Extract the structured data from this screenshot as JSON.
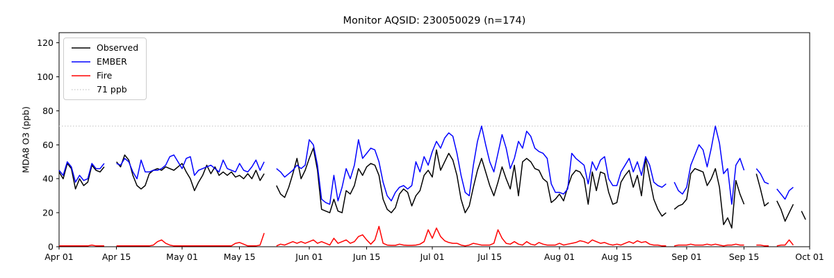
{
  "chart_data": {
    "type": "line",
    "title": "Monitor AQSID: 230050029 (n=174)",
    "ylabel": "MDA8 O3 (ppb)",
    "xlabel": "",
    "ylim": [
      0,
      126
    ],
    "yticks": [
      0,
      20,
      40,
      60,
      80,
      100,
      120
    ],
    "x_total_days": 183,
    "x_ticks": [
      {
        "day": 0,
        "label": "Apr 01"
      },
      {
        "day": 14,
        "label": "Apr 15"
      },
      {
        "day": 30,
        "label": "May 01"
      },
      {
        "day": 44,
        "label": "May 15"
      },
      {
        "day": 61,
        "label": "Jun 01"
      },
      {
        "day": 75,
        "label": "Jun 15"
      },
      {
        "day": 91,
        "label": "Jul 01"
      },
      {
        "day": 105,
        "label": "Jul 15"
      },
      {
        "day": 122,
        "label": "Aug 01"
      },
      {
        "day": 136,
        "label": "Aug 15"
      },
      {
        "day": 153,
        "label": "Sep 01"
      },
      {
        "day": 167,
        "label": "Sep 15"
      },
      {
        "day": 183,
        "label": "Oct 01"
      }
    ],
    "grid": false,
    "legend_position": "upper-left",
    "threshold": {
      "label": "71 ppb",
      "value": 71,
      "color": "#d0d0d0",
      "style": "dotted"
    },
    "series": [
      {
        "name": "Observed",
        "color": "#000000",
        "values": [
          44,
          40,
          49,
          46,
          34,
          40,
          36,
          38,
          48,
          45,
          44,
          47,
          null,
          null,
          50,
          47,
          54,
          51,
          42,
          36,
          34,
          36,
          43,
          45,
          46,
          45,
          47,
          46,
          45,
          47,
          49,
          44,
          40,
          33,
          38,
          42,
          48,
          43,
          47,
          42,
          44,
          42,
          44,
          41,
          42,
          40,
          43,
          40,
          45,
          39,
          43,
          null,
          null,
          36,
          31,
          29,
          35,
          43,
          52,
          40,
          45,
          52,
          58,
          45,
          22,
          21,
          20,
          28,
          21,
          20,
          33,
          31,
          36,
          46,
          42,
          47,
          49,
          48,
          42,
          28,
          22,
          20,
          23,
          31,
          34,
          32,
          24,
          30,
          33,
          42,
          45,
          41,
          57,
          45,
          50,
          55,
          51,
          42,
          28,
          20,
          24,
          35,
          45,
          52,
          44,
          36,
          30,
          38,
          47,
          40,
          34,
          48,
          30,
          50,
          52,
          50,
          46,
          45,
          40,
          38,
          26,
          28,
          31,
          27,
          35,
          42,
          45,
          44,
          40,
          25,
          44,
          33,
          44,
          43,
          32,
          25,
          26,
          38,
          42,
          45,
          35,
          42,
          30,
          52,
          40,
          28,
          22,
          18,
          20,
          null,
          22,
          24,
          25,
          28,
          43,
          46,
          45,
          44,
          36,
          40,
          46,
          35,
          13,
          17,
          11,
          39,
          31,
          25,
          null,
          null,
          43,
          34,
          24,
          26,
          null,
          27,
          22,
          15,
          20,
          25,
          null,
          21,
          16
        ]
      },
      {
        "name": "EMBER",
        "color": "#0000ff",
        "values": [
          45,
          42,
          50,
          47,
          38,
          42,
          39,
          40,
          49,
          46,
          46,
          49,
          null,
          null,
          49,
          48,
          52,
          50,
          44,
          40,
          51,
          44,
          44,
          45,
          45,
          46,
          48,
          53,
          54,
          50,
          46,
          52,
          53,
          42,
          45,
          46,
          47,
          48,
          46,
          44,
          51,
          46,
          45,
          44,
          49,
          45,
          44,
          47,
          51,
          45,
          50,
          null,
          null,
          46,
          44,
          41,
          43,
          45,
          48,
          46,
          48,
          63,
          60,
          48,
          28,
          26,
          25,
          42,
          27,
          35,
          46,
          40,
          48,
          63,
          52,
          55,
          58,
          57,
          50,
          38,
          30,
          27,
          32,
          35,
          36,
          34,
          36,
          50,
          44,
          53,
          48,
          56,
          62,
          58,
          64,
          67,
          65,
          55,
          42,
          32,
          30,
          48,
          62,
          71,
          60,
          50,
          44,
          55,
          66,
          58,
          46,
          52,
          62,
          58,
          68,
          65,
          58,
          56,
          55,
          52,
          37,
          32,
          32,
          31,
          34,
          55,
          52,
          50,
          48,
          37,
          50,
          45,
          51,
          53,
          40,
          36,
          36,
          44,
          48,
          52,
          44,
          50,
          42,
          53,
          48,
          38,
          36,
          35,
          37,
          null,
          38,
          33,
          31,
          35,
          48,
          54,
          60,
          57,
          47,
          58,
          71,
          61,
          43,
          46,
          25,
          48,
          52,
          45,
          null,
          null,
          46,
          43,
          38,
          37,
          null,
          34,
          31,
          28,
          33,
          35,
          null,
          null,
          null
        ]
      },
      {
        "name": "Fire",
        "color": "#ff0000",
        "values": [
          0.5,
          0.5,
          0.5,
          0.5,
          0.5,
          0.5,
          0.5,
          0.5,
          1,
          0.5,
          0.5,
          0.5,
          null,
          null,
          0.5,
          0.5,
          0.5,
          0.5,
          0.5,
          0.5,
          0.5,
          0.5,
          0.5,
          1,
          3,
          4,
          2,
          1,
          0.5,
          0.5,
          0.5,
          0.5,
          0.5,
          0.5,
          0.5,
          0.5,
          0.5,
          0.5,
          0.5,
          0.5,
          0.5,
          0.5,
          0.5,
          2,
          2.5,
          1.5,
          0.5,
          0.5,
          0.5,
          1,
          8,
          null,
          null,
          0.5,
          1.5,
          1,
          2,
          3,
          2,
          3,
          2,
          3,
          4,
          2,
          3,
          2,
          1,
          5,
          2,
          3,
          4,
          2,
          3,
          6,
          7,
          4,
          1.5,
          4,
          12,
          2,
          1,
          0.8,
          0.8,
          1.5,
          1,
          0.8,
          0.8,
          1,
          1.5,
          3,
          10,
          5,
          11,
          6,
          3.5,
          2.5,
          2,
          2,
          1,
          0.5,
          1,
          2,
          1.5,
          1,
          1,
          1,
          2,
          10,
          5,
          2,
          1.5,
          3,
          1.5,
          1,
          3,
          1.5,
          1,
          2.5,
          1.5,
          1,
          1,
          1,
          2,
          1,
          1.5,
          2,
          2.5,
          3.5,
          3,
          2,
          4,
          3,
          2,
          2.5,
          1.5,
          1,
          1.5,
          1,
          2,
          3,
          2,
          3.5,
          2.5,
          3,
          1.5,
          1,
          1,
          0.5,
          0.5,
          null,
          0.5,
          1,
          1,
          1,
          1.5,
          1,
          1,
          1,
          1.5,
          1,
          1.5,
          1,
          0.5,
          1,
          1,
          1.5,
          1,
          1,
          null,
          null,
          1,
          1,
          0.5,
          0.5,
          null,
          0.5,
          1,
          1,
          4,
          1,
          null,
          null,
          null
        ]
      }
    ]
  }
}
